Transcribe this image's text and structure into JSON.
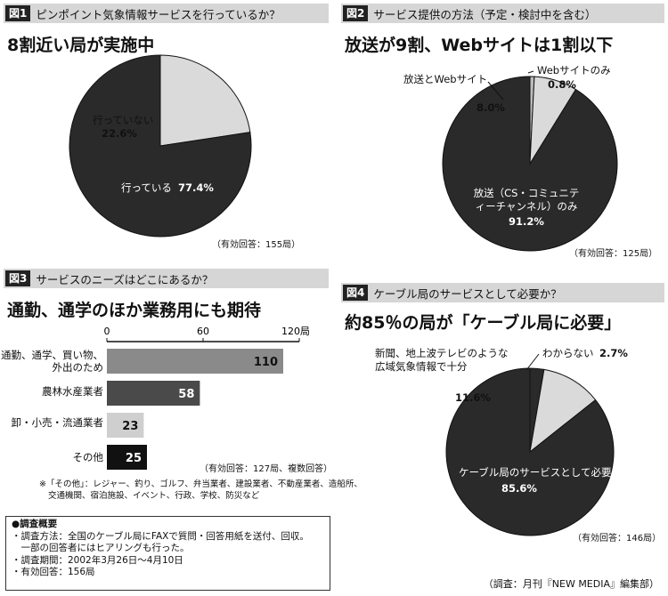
{
  "fig1": {
    "no": "図1",
    "title": "ピンポイント気象情報サービスを行っているか？",
    "headline": "8割近い局が実施中",
    "response": "（有効回答：155局）"
  },
  "fig2": {
    "no": "図2",
    "title": "サービス提供の方法（予定・検討中を含む）",
    "headline": "放送が9割、Webサイトは1割以下",
    "response": "（有効回答：125局）"
  },
  "fig3": {
    "no": "図3",
    "title": "サービスのニーズはどこにあるか？",
    "headline": "通勤、通学のほか業務用にも期待",
    "response": "（有効回答：127局、複数回答）",
    "note_lines": [
      "※「その他」：レジャー、釣り、ゴルフ、弁当業者、建設業者、不動産業者、造船所、",
      "交通機関、宿泊施設、イベント、行政、学校、防災など"
    ]
  },
  "fig4": {
    "no": "図4",
    "title": "ケーブル局のサービスとして必要か？",
    "headline": "約85％の局が「ケーブル局に必要」",
    "response": "（有効回答：146局）"
  },
  "survey": {
    "title": "●調査概要",
    "lines": [
      "・調査方法：全国のケーブル局にFAXで質問・回答用紙を送付、回収。",
      "　一部の回答者にはヒアリングも行った。",
      "・調査期間：2002年3月26日～4月10日",
      "・有効回答：156局"
    ]
  },
  "source": "（調査：月刊『NEW MEDIA』編集部）",
  "colors": {
    "dark": "#2a2a2a",
    "light": "#dadada",
    "bar_gray": "#8a8a8a",
    "bar_mid": "#4a4a4a",
    "bar_light": "#cfcfcf"
  },
  "chart_data": [
    {
      "type": "pie",
      "labels": [
        "行っていない",
        "行っている"
      ],
      "values": [
        22.6,
        77.4
      ],
      "value_labels": [
        "22.6%",
        "77.4%"
      ]
    },
    {
      "type": "pie",
      "labels": [
        "Webサイトのみ",
        "放送とWebサイト",
        "放送（CS・コミュニティーチャンネル）のみ"
      ],
      "values": [
        0.8,
        8.0,
        91.2
      ],
      "value_labels": [
        "0.8%",
        "8.0%",
        "91.2%"
      ]
    },
    {
      "type": "bar",
      "orientation": "horizontal",
      "categories": [
        "通勤、通学、買い物、外出のため",
        "農林水産業者",
        "卸・小売・流通業者",
        "その他"
      ],
      "values": [
        110,
        58,
        23,
        25
      ],
      "xlim": [
        0,
        120
      ],
      "ticks": [
        "0",
        "60",
        "120局"
      ]
    },
    {
      "type": "pie",
      "labels": [
        "わからない",
        "新聞、地上波テレビのような広域気象情報で十分",
        "ケーブル局のサービスとして必要"
      ],
      "values": [
        2.7,
        11.6,
        85.6
      ],
      "value_labels": [
        "2.7%",
        "11.6%",
        "85.6%"
      ]
    }
  ]
}
